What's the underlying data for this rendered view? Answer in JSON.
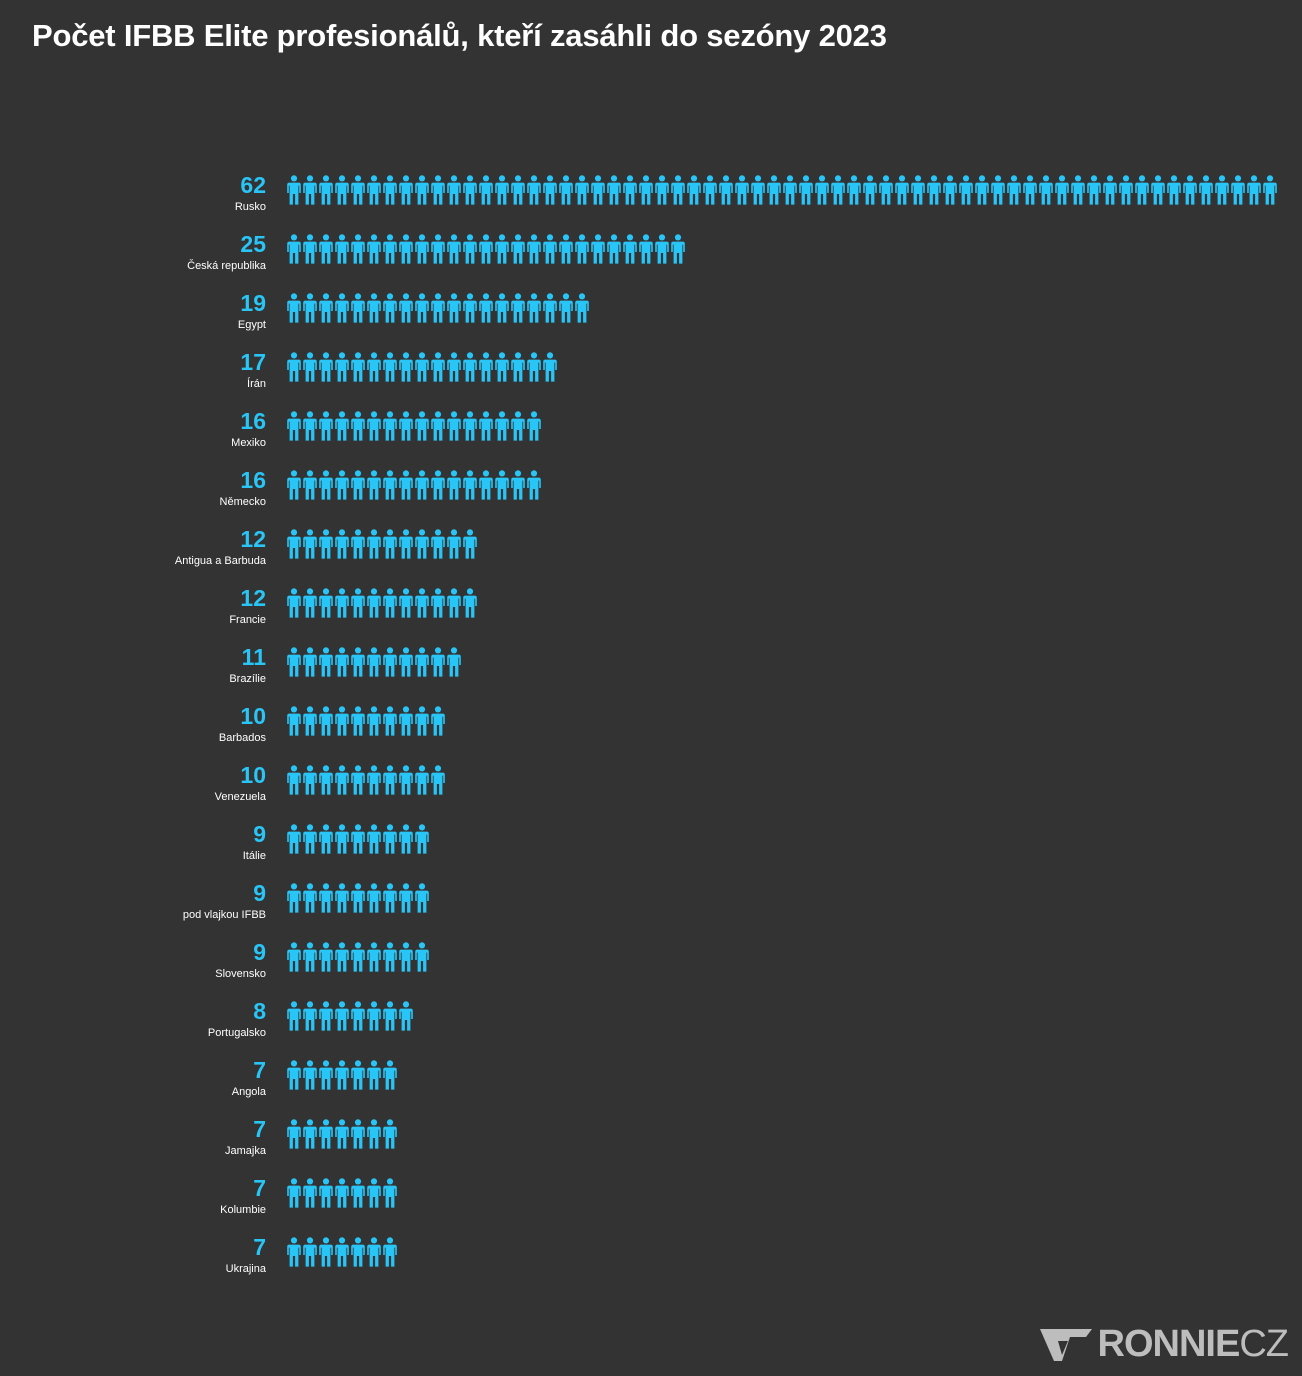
{
  "title": "Počet IFBB Elite profesionálů, kteří zasáhli do sezóny 2023",
  "colors": {
    "background": "#333333",
    "accent": "#29c5f6",
    "text": "#ffffff",
    "logo": "#bdbdbd"
  },
  "icon": "person-icon",
  "logo": {
    "bold": "RONNIE",
    "light": "CZ",
    "icon": "ronnie-v-logo-icon"
  },
  "chart_data": {
    "type": "bar",
    "variant": "pictogram",
    "orientation": "horizontal",
    "title": "Počet IFBB Elite profesionálů, kteří zasáhli do sezóny 2023",
    "xlabel": "",
    "ylabel": "",
    "unit_per_icon": 1,
    "grid": false,
    "legend": false,
    "categories": [
      "Rusko",
      "Česká republika",
      "Egypt",
      "Írán",
      "Mexiko",
      "Německo",
      "Antigua a Barbuda",
      "Francie",
      "Brazílie",
      "Barbados",
      "Venezuela",
      "Itálie",
      "pod vlajkou IFBB",
      "Slovensko",
      "Portugalsko",
      "Angola",
      "Jamajka",
      "Kolumbie",
      "Ukrajina"
    ],
    "values": [
      62,
      25,
      19,
      17,
      16,
      16,
      12,
      12,
      11,
      10,
      10,
      9,
      9,
      9,
      8,
      7,
      7,
      7,
      7
    ]
  }
}
